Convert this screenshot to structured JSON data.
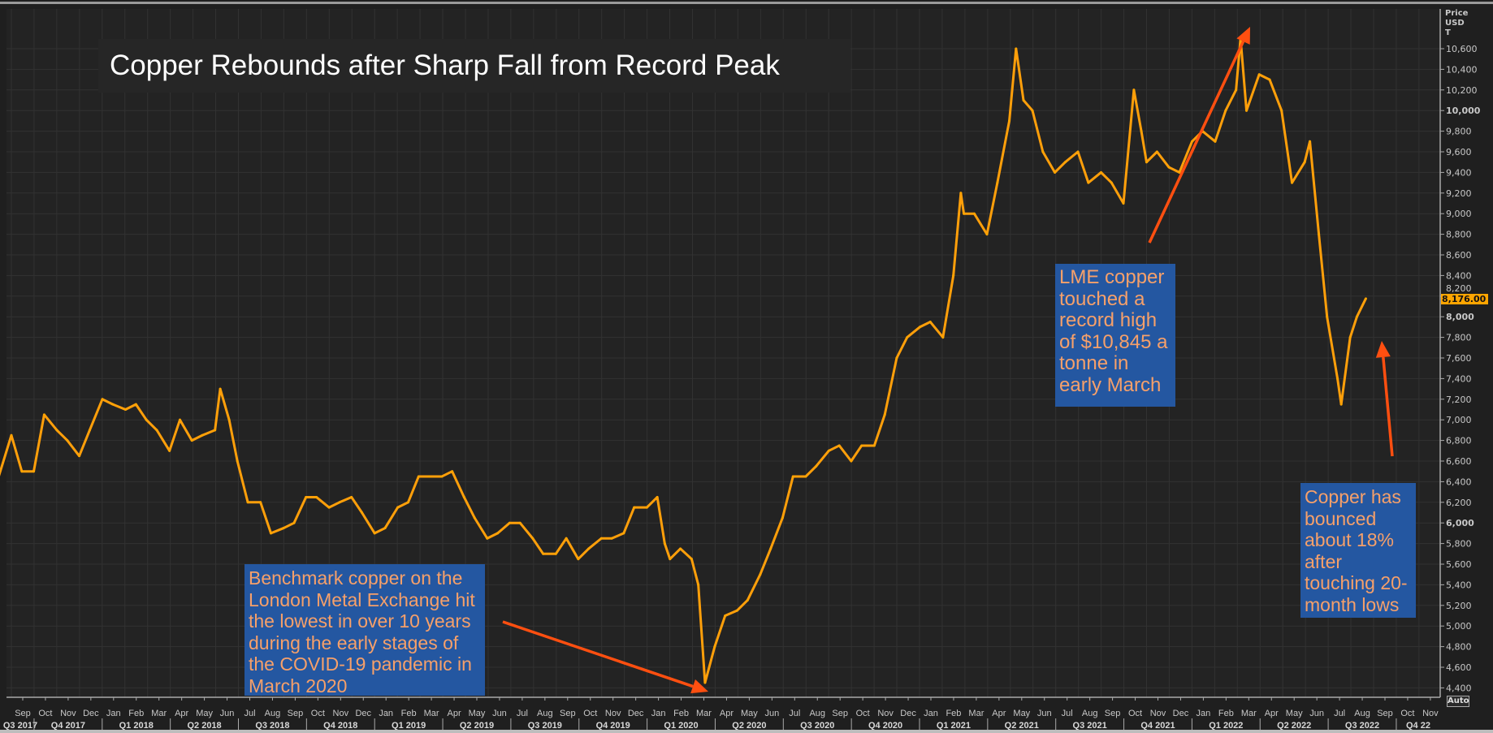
{
  "chart_data": {
    "type": "line",
    "title": "Copper Rebounds after Sharp Fall from Record Peak",
    "ylabel": "Price USD T",
    "ylabel_lines": [
      "Price",
      "USD",
      "T"
    ],
    "ylim": [
      4300,
      10900
    ],
    "yticks": [
      4400,
      4600,
      4800,
      5000,
      5200,
      5400,
      5600,
      5800,
      6000,
      6200,
      6400,
      6600,
      6800,
      7000,
      7200,
      7400,
      7600,
      7800,
      8000,
      8200,
      8400,
      8600,
      8800,
      9000,
      9200,
      9400,
      9600,
      9800,
      10000,
      10200,
      10400,
      10600
    ],
    "ytick_labels": [
      "4,400",
      "4,600",
      "4,800",
      "5,000",
      "5,200",
      "5,400",
      "5,600",
      "5,800",
      "6,000",
      "6,200",
      "6,400",
      "6,600",
      "6,800",
      "7,000",
      "7,200",
      "7,400",
      "7,600",
      "7,800",
      "8,000",
      "8,200",
      "8,400",
      "8,600",
      "8,800",
      "9,000",
      "9,200",
      "9,400",
      "9,600",
      "9,800",
      "10,000",
      "10,200",
      "10,400",
      "10,600"
    ],
    "bold_yticks": [
      "6,000",
      "8,000",
      "10,000"
    ],
    "last_price_label": "8,176.00",
    "grid": true,
    "line_color": "#ffa500",
    "x_month_labels": [
      "Sep",
      "Oct",
      "Nov",
      "Dec",
      "Jan",
      "Feb",
      "Mar",
      "Apr",
      "May",
      "Jun",
      "Jul",
      "Aug",
      "Sep",
      "Oct",
      "Nov",
      "Dec",
      "Jan",
      "Feb",
      "Mar",
      "Apr",
      "May",
      "Jun",
      "Jul",
      "Aug",
      "Sep",
      "Oct",
      "Nov",
      "Dec",
      "Jan",
      "Feb",
      "Mar",
      "Apr",
      "May",
      "Jun",
      "Jul",
      "Aug",
      "Sep",
      "Oct",
      "Nov",
      "Dec",
      "Jan",
      "Feb",
      "Mar",
      "Apr",
      "May",
      "Jun",
      "Jul",
      "Aug",
      "Sep",
      "Oct",
      "Nov",
      "Dec",
      "Jan",
      "Feb",
      "Mar",
      "Apr",
      "May",
      "Jun",
      "Jul",
      "Aug",
      "Sep",
      "Oct",
      "Nov"
    ],
    "x_quarter_labels": [
      "Q3 2017",
      "Q4 2017",
      "Q1 2018",
      "Q2 2018",
      "Q3 2018",
      "Q4 2018",
      "Q1 2019",
      "Q2 2019",
      "Q3 2019",
      "Q4 2019",
      "Q1 2020",
      "Q2 2020",
      "Q3 2020",
      "Q4 2020",
      "Q1 2021",
      "Q2 2021",
      "Q3 2021",
      "Q4 2021",
      "Q1 2022",
      "Q2 2022",
      "Q3 2022",
      "Q4 22"
    ],
    "series": [
      {
        "x": [
          "2017-08-15",
          "2017-09-01",
          "2017-09-15",
          "2017-10-01",
          "2017-10-15",
          "2017-11-01",
          "2017-11-15",
          "2017-12-01",
          "2017-12-15",
          "2018-01-01",
          "2018-01-15",
          "2018-02-01",
          "2018-02-15",
          "2018-03-01",
          "2018-03-15",
          "2018-04-01",
          "2018-04-15",
          "2018-05-01",
          "2018-05-15",
          "2018-06-01",
          "2018-06-08",
          "2018-06-20",
          "2018-07-01",
          "2018-07-15",
          "2018-08-01",
          "2018-08-15",
          "2018-09-01",
          "2018-09-15",
          "2018-10-01",
          "2018-10-15",
          "2018-11-01",
          "2018-11-15",
          "2018-12-01",
          "2018-12-15",
          "2019-01-01",
          "2019-01-15",
          "2019-02-01",
          "2019-02-15",
          "2019-03-01",
          "2019-03-15",
          "2019-04-01",
          "2019-04-15",
          "2019-05-01",
          "2019-05-15",
          "2019-06-01",
          "2019-06-15",
          "2019-07-01",
          "2019-07-15",
          "2019-08-01",
          "2019-08-15",
          "2019-09-01",
          "2019-09-15",
          "2019-10-01",
          "2019-10-15",
          "2019-11-01",
          "2019-11-15",
          "2019-12-01",
          "2019-12-15",
          "2020-01-01",
          "2020-01-15",
          "2020-01-25",
          "2020-02-01",
          "2020-02-15",
          "2020-03-01",
          "2020-03-10",
          "2020-03-19",
          "2020-04-01",
          "2020-04-15",
          "2020-05-01",
          "2020-05-15",
          "2020-06-01",
          "2020-06-15",
          "2020-07-01",
          "2020-07-15",
          "2020-08-01",
          "2020-08-15",
          "2020-09-01",
          "2020-09-15",
          "2020-10-01",
          "2020-10-15",
          "2020-11-01",
          "2020-11-15",
          "2020-12-01",
          "2020-12-15",
          "2021-01-01",
          "2021-01-15",
          "2021-02-01",
          "2021-02-15",
          "2021-02-25",
          "2021-03-01",
          "2021-03-15",
          "2021-04-01",
          "2021-04-15",
          "2021-05-01",
          "2021-05-10",
          "2021-05-20",
          "2021-06-01",
          "2021-06-15",
          "2021-07-01",
          "2021-07-15",
          "2021-08-01",
          "2021-08-15",
          "2021-09-01",
          "2021-09-15",
          "2021-10-01",
          "2021-10-15",
          "2021-10-25",
          "2021-11-01",
          "2021-11-15",
          "2021-12-01",
          "2021-12-15",
          "2022-01-01",
          "2022-01-15",
          "2022-02-01",
          "2022-02-15",
          "2022-03-01",
          "2022-03-07",
          "2022-03-15",
          "2022-04-01",
          "2022-04-15",
          "2022-05-01",
          "2022-05-15",
          "2022-06-01",
          "2022-06-08",
          "2022-06-20",
          "2022-07-01",
          "2022-07-15",
          "2022-07-20",
          "2022-08-01",
          "2022-08-10",
          "2022-08-22"
        ],
        "y": [
          6450,
          6850,
          6500,
          6500,
          7050,
          6900,
          6800,
          6650,
          6900,
          7200,
          7150,
          7100,
          7150,
          7000,
          6900,
          6700,
          7000,
          6800,
          6850,
          6900,
          7300,
          7000,
          6600,
          6200,
          6200,
          5900,
          5950,
          6000,
          6250,
          6250,
          6150,
          6200,
          6250,
          6100,
          5900,
          5950,
          6150,
          6200,
          6450,
          6450,
          6450,
          6500,
          6250,
          6050,
          5850,
          5900,
          6000,
          6000,
          5850,
          5700,
          5700,
          5850,
          5650,
          5750,
          5850,
          5850,
          5900,
          6150,
          6150,
          6250,
          5800,
          5650,
          5750,
          5650,
          5400,
          4450,
          4800,
          5100,
          5150,
          5250,
          5500,
          5750,
          6050,
          6450,
          6450,
          6550,
          6700,
          6750,
          6600,
          6750,
          6750,
          7050,
          7600,
          7800,
          7900,
          7950,
          7800,
          8400,
          9200,
          9000,
          9000,
          8800,
          9300,
          9900,
          10600,
          10100,
          10000,
          9600,
          9400,
          9500,
          9600,
          9300,
          9400,
          9300,
          9100,
          10200,
          9800,
          9500,
          9600,
          9450,
          9400,
          9700,
          9800,
          9700,
          10000,
          10200,
          10700,
          10000,
          10350,
          10300,
          10000,
          9300,
          9500,
          9700,
          8800,
          8000,
          7400,
          7150,
          7800,
          8000,
          8176
        ]
      }
    ]
  },
  "annotations": {
    "note1": "Benchmark copper on the London Metal Exchange hit the lowest in over 10 years during the early stages of the COVID-19 pandemic in March 2020",
    "note2": "LME copper touched a record high of $10,845 a tonne in early March",
    "note3": "Copper has bounced about 18% after touching 20-month lows",
    "arrow_color": "#ff4f10",
    "box_color": "#2457a1"
  },
  "controls": {
    "auto_label": "Auto"
  }
}
